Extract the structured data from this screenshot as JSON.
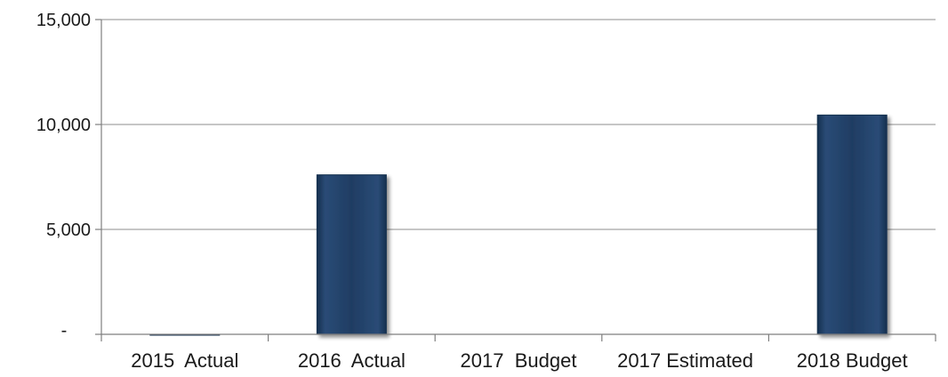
{
  "chart_data": {
    "type": "bar",
    "categories": [
      "2015  Actual",
      "2016  Actual",
      "2017  Budget",
      "2017 Estimated",
      "2018 Budget"
    ],
    "values": [
      15,
      7600,
      0,
      0,
      10450
    ],
    "ylim": [
      0,
      15000
    ],
    "yticks": [
      0,
      5000,
      10000,
      15000
    ],
    "ytick_labels": [
      "-",
      "5,000",
      "10,000",
      "15,000"
    ],
    "grid": true,
    "legend": "none",
    "colors": {
      "bar": "#1f3d63",
      "bar_edge": "#16304f",
      "bar_highlight": "#3a5f8e"
    }
  }
}
